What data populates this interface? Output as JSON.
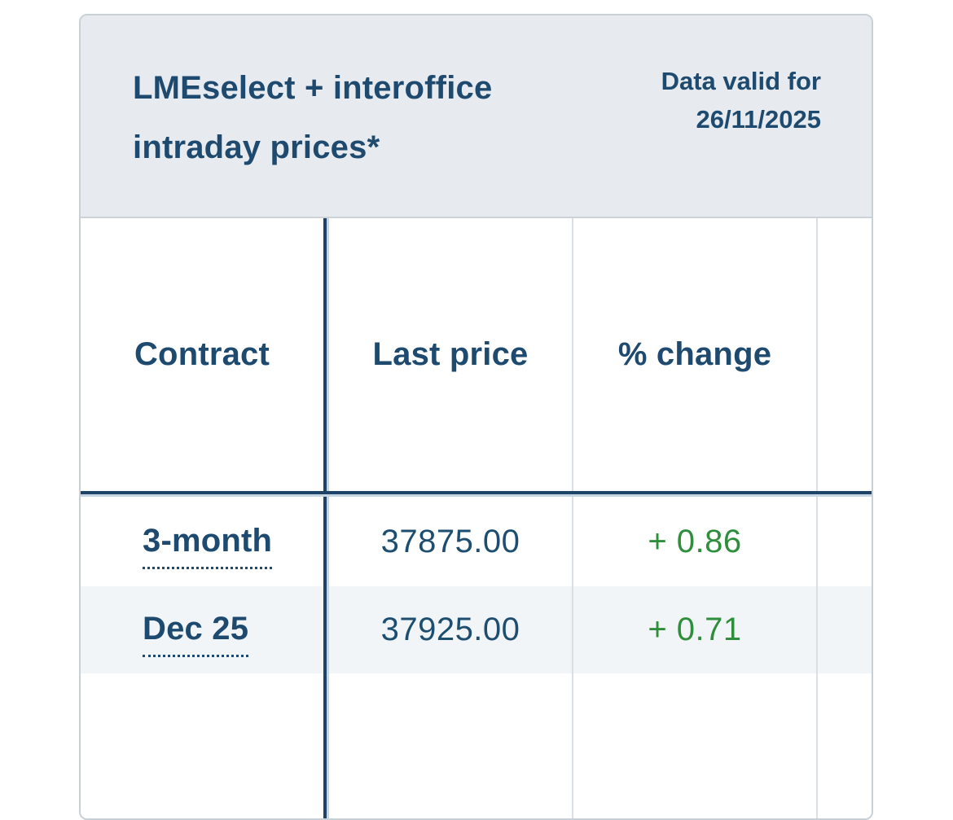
{
  "card": {
    "title": "LMEselect + interoffice intraday prices*",
    "data_valid": {
      "label": "Data valid for",
      "date": "26/11/2025"
    }
  },
  "table": {
    "columns": [
      "Contract",
      "Last price",
      "% change",
      ""
    ],
    "rows": [
      {
        "contract": "3-month",
        "last_price": "37875.00",
        "pct_change": "+ 0.86",
        "change_direction": "positive"
      },
      {
        "contract": "Dec 25",
        "last_price": "37925.00",
        "pct_change": "+ 0.71",
        "change_direction": "positive"
      }
    ]
  },
  "colors": {
    "navy": "#1d4a6e",
    "positive_green": "#2f8e3c",
    "header_band_bg": "#e7ebef",
    "alt_row_bg": "#f2f5f7",
    "dark_divider": "#1d4466",
    "light_divider": "#d9dfe5",
    "accent_rule": "#c6d5e4"
  }
}
